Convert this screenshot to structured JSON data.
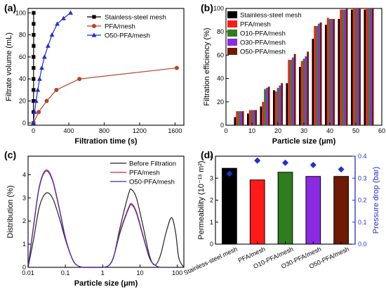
{
  "panels": {
    "a": {
      "letter": "(a)"
    },
    "b": {
      "letter": "(b)"
    },
    "c": {
      "letter": "(c)"
    },
    "d": {
      "letter": "(d)"
    }
  },
  "chart_data": [
    {
      "panel": "a",
      "type": "line",
      "xlabel": "Filtration time (s)",
      "ylabel": "Filtrate volume (mL)",
      "xlim": [
        -60,
        1700
      ],
      "ylim": [
        -2,
        104
      ],
      "xticks": [
        0,
        400,
        800,
        1200,
        1600
      ],
      "yticks": [
        0,
        20,
        40,
        60,
        80,
        100
      ],
      "legend_position": "top-right",
      "series": [
        {
          "name": "Stainless-steel mesh",
          "color": "#000000",
          "marker": "square",
          "x": [
            1,
            1,
            1,
            2,
            2,
            2,
            2,
            3,
            3,
            3,
            3
          ],
          "y": [
            0,
            10,
            20,
            30,
            40,
            50,
            60,
            70,
            80,
            90,
            100
          ]
        },
        {
          "name": "PFA/mesh",
          "color": "#b5432a",
          "marker": "circle",
          "x": [
            0,
            60,
            150,
            260,
            520,
            1620
          ],
          "y": [
            0,
            10,
            20,
            30,
            40,
            50
          ]
        },
        {
          "name": "O50-PFA/mesh",
          "color": "#1f2fd1",
          "marker": "triangle",
          "x": [
            0,
            14,
            30,
            50,
            70,
            95,
            125,
            165,
            210,
            270,
            340,
            420
          ],
          "y": [
            0,
            10,
            20,
            30,
            40,
            50,
            60,
            70,
            80,
            90,
            95,
            100
          ]
        }
      ]
    },
    {
      "panel": "b",
      "type": "bar",
      "xlabel": "Particle size (μm)",
      "ylabel": "Filtration efficiency (%)",
      "xlim": [
        0,
        60
      ],
      "ylim": [
        0,
        100
      ],
      "xticks": [
        0,
        10,
        20,
        30,
        40,
        50,
        60
      ],
      "yticks": [
        0,
        20,
        40,
        60,
        80,
        100
      ],
      "legend_position": "top-left",
      "categories": [
        5,
        10,
        15,
        20,
        25,
        30,
        35,
        40,
        45,
        50,
        55
      ],
      "series": [
        {
          "name": "Stainless-steel mesh",
          "color": "#000000",
          "values": [
            7,
            10,
            16,
            30,
            36,
            50,
            74,
            86,
            91,
            99,
            99
          ]
        },
        {
          "name": "PFA/mesh",
          "color": "#ff1a1a",
          "values": [
            12,
            13,
            20,
            29,
            56,
            55,
            85,
            92,
            99,
            100,
            100
          ]
        },
        {
          "name": "O10-PFA/mesh",
          "color": "#2e7d1f",
          "values": [
            12,
            13,
            31,
            32,
            56,
            57,
            85,
            91,
            99,
            100,
            100
          ]
        },
        {
          "name": "O30-PFA/mesh",
          "color": "#8a2be2",
          "values": [
            12,
            13,
            32,
            34,
            58,
            59,
            87,
            91,
            99,
            100,
            100
          ]
        },
        {
          "name": "O50-PFA/mesh",
          "color": "#6e1a05",
          "values": [
            12,
            13,
            33,
            36,
            61,
            63,
            88,
            91,
            100,
            100,
            100
          ]
        }
      ]
    },
    {
      "panel": "c",
      "type": "line",
      "xscale": "log",
      "xlabel": "Particle size (μm)",
      "ylabel": "Distribution (%)",
      "xlim": [
        0.01,
        150
      ],
      "ylim": [
        0,
        4.8
      ],
      "xticks": [
        0.01,
        0.1,
        1,
        10,
        100
      ],
      "xticklabels": [
        "0.01",
        "0.1",
        "1",
        "10",
        "100"
      ],
      "yticks": [
        0,
        1,
        2,
        3,
        4
      ],
      "legend_position": "top-right",
      "series": [
        {
          "name": "Before Filtration",
          "color": "#222222",
          "x": [
            0.01,
            0.014,
            0.02,
            0.03,
            0.045,
            0.07,
            0.1,
            0.15,
            0.2,
            0.3,
            0.5,
            1,
            1.5,
            2,
            3,
            5,
            6,
            8,
            12,
            18,
            25,
            35,
            50,
            70,
            90,
            110,
            150
          ],
          "y": [
            0,
            1.2,
            2.6,
            3.2,
            3.0,
            2.1,
            1.2,
            0.4,
            0.1,
            0,
            0,
            0,
            0.1,
            0.5,
            1.8,
            3.2,
            3.35,
            3.0,
            1.8,
            0.5,
            0.1,
            0.5,
            1.5,
            2.15,
            1.5,
            0.4,
            0
          ]
        },
        {
          "name": "PFA/mesh",
          "color": "#e02020",
          "x": [
            0.01,
            0.014,
            0.02,
            0.03,
            0.045,
            0.07,
            0.1,
            0.15,
            0.2,
            0.3,
            0.5,
            1,
            1.5,
            2,
            3,
            5,
            6,
            8,
            12,
            18,
            25,
            35,
            50
          ],
          "y": [
            0,
            1.8,
            3.5,
            4.2,
            3.8,
            2.5,
            1.3,
            0.4,
            0.1,
            0,
            0,
            0,
            0.1,
            0.5,
            1.6,
            2.6,
            2.75,
            2.4,
            1.4,
            0.4,
            0.1,
            0,
            0
          ]
        },
        {
          "name": "O50-PFA/mesh",
          "color": "#3a2db8",
          "x": [
            0.01,
            0.014,
            0.02,
            0.03,
            0.045,
            0.07,
            0.1,
            0.15,
            0.2,
            0.3,
            0.5,
            1,
            1.5,
            2,
            3,
            5,
            6,
            8,
            12,
            18,
            25,
            35,
            50
          ],
          "y": [
            0,
            1.75,
            3.45,
            4.15,
            3.75,
            2.45,
            1.25,
            0.4,
            0.1,
            0,
            0,
            0,
            0.1,
            0.5,
            1.55,
            2.55,
            2.7,
            2.35,
            1.35,
            0.4,
            0.1,
            0,
            0
          ]
        }
      ]
    },
    {
      "panel": "d",
      "type": "bar",
      "ylabel": "Permeability (10⁻¹³ m²)",
      "y2label": "Pressure drop (bar)",
      "ylim": [
        0,
        4
      ],
      "y2lim": [
        0,
        0.4
      ],
      "yticks": [
        0,
        1,
        2,
        3,
        4
      ],
      "y2ticks": [
        0.0,
        0.1,
        0.2,
        0.3,
        0.4
      ],
      "y2ticklabels": [
        "0.0",
        "0.1",
        "0.2",
        "0.3",
        "0.4"
      ],
      "categories": [
        "Stainless-steel mesh",
        "PFA/mesh",
        "O10-PFA/mesh",
        "O30-PFA/mesh",
        "O50-PFA/mesh"
      ],
      "bar_colors": [
        "#000000",
        "#ff1a1a",
        "#2e7d1f",
        "#8a2be2",
        "#6e1a05"
      ],
      "values": [
        3.45,
        2.92,
        3.27,
        3.08,
        3.08
      ],
      "pressure_drop": [
        0.32,
        0.38,
        0.37,
        0.36,
        0.34
      ],
      "pressure_marker_color": "#1f2fd1",
      "y2_color": "#1f2fd1"
    }
  ]
}
